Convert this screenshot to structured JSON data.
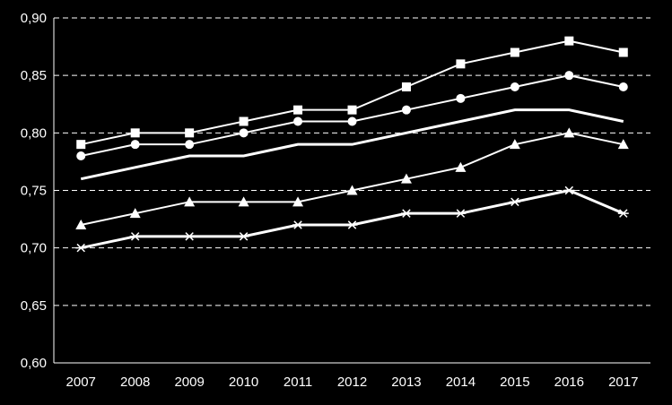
{
  "chart_data": {
    "type": "line",
    "title": "",
    "xlabel": "",
    "ylabel": "",
    "categories": [
      "2007",
      "2008",
      "2009",
      "2010",
      "2011",
      "2012",
      "2013",
      "2014",
      "2015",
      "2016",
      "2017"
    ],
    "ylim": [
      0.6,
      0.9
    ],
    "yticks": [
      "0,60",
      "0,65",
      "0,70",
      "0,75",
      "0,80",
      "0,85",
      "0,90"
    ],
    "grid": "horizontal dashed",
    "series": [
      {
        "marker": "square",
        "values": [
          0.79,
          0.8,
          0.8,
          0.81,
          0.82,
          0.82,
          0.84,
          0.86,
          0.87,
          0.88,
          0.87
        ]
      },
      {
        "marker": "circle",
        "values": [
          0.78,
          0.79,
          0.79,
          0.8,
          0.81,
          0.81,
          0.82,
          0.83,
          0.84,
          0.85,
          0.84
        ]
      },
      {
        "marker": "none",
        "values": [
          0.76,
          0.77,
          0.78,
          0.78,
          0.79,
          0.79,
          0.8,
          0.81,
          0.82,
          0.82,
          0.81
        ]
      },
      {
        "marker": "triangle",
        "values": [
          0.72,
          0.73,
          0.74,
          0.74,
          0.74,
          0.75,
          0.76,
          0.77,
          0.79,
          0.8,
          0.79
        ]
      },
      {
        "marker": "star",
        "values": [
          0.7,
          0.71,
          0.71,
          0.71,
          0.72,
          0.72,
          0.73,
          0.73,
          0.74,
          0.75,
          0.73
        ]
      }
    ],
    "colors": {
      "background": "#000000",
      "line": "#ffffff",
      "grid": "#ffffff"
    }
  }
}
